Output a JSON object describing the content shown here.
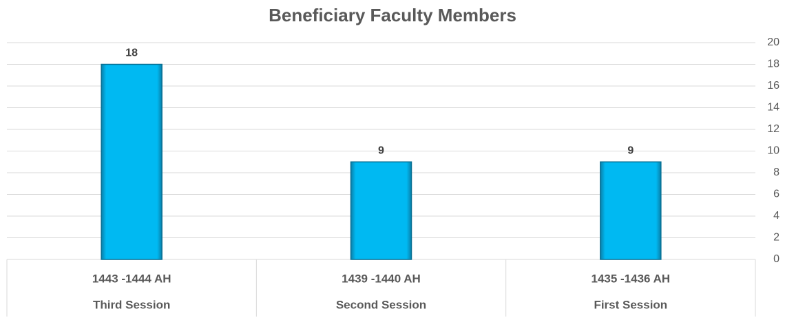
{
  "chart_data": {
    "type": "bar",
    "title": "Beneficiary Faculty Members",
    "categories": [
      [
        "1443 -1444 AH",
        "Third Session"
      ],
      [
        "1439 -1440 AH",
        "Second Session"
      ],
      [
        "1435 -1436 AH",
        "First Session"
      ]
    ],
    "values": [
      18,
      9,
      9
    ],
    "color": "#00b9f2",
    "ylim": [
      0,
      20
    ],
    "yticks": [
      0,
      2,
      4,
      6,
      8,
      10,
      12,
      14,
      16,
      18,
      20
    ],
    "grid": true,
    "y_axis_side": "right"
  }
}
